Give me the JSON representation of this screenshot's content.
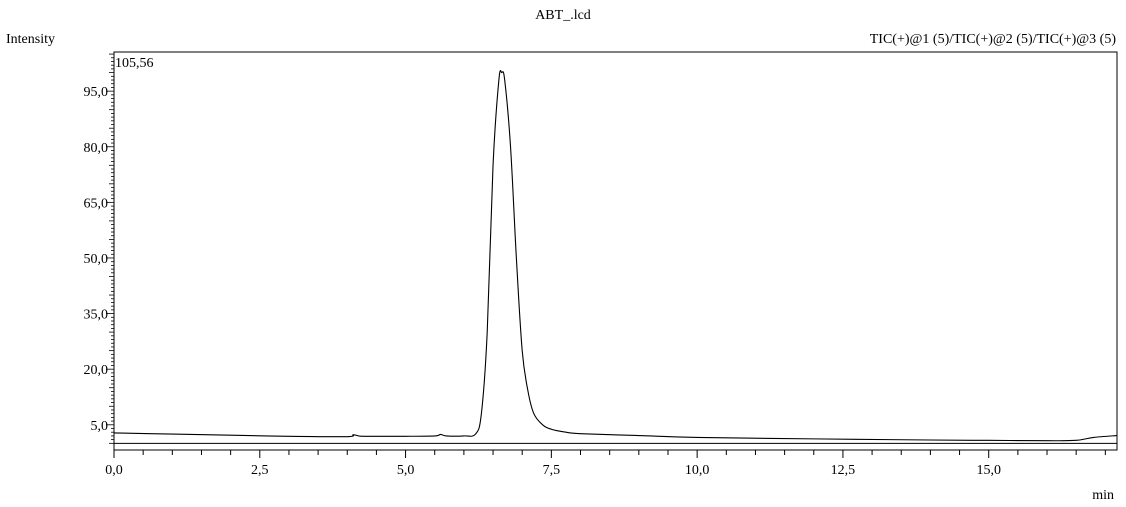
{
  "chart_data": {
    "type": "line",
    "title": "ABT_.lcd",
    "ylabel": "Intensity",
    "xlabel": "min",
    "legend": "TIC(+)@1 (5)/TIC(+)@2 (5)/TIC(+)@3 (5)",
    "max_label": "105,56",
    "xlim": [
      0,
      17.2
    ],
    "ylim": [
      -1.8,
      105.56
    ],
    "x_ticks": [
      "0,0",
      "2,5",
      "5,0",
      "7,5",
      "10,0",
      "12,5",
      "15,0"
    ],
    "x_tick_values": [
      0,
      2.5,
      5,
      7.5,
      10,
      12.5,
      15
    ],
    "y_ticks": [
      "5,0",
      "20,0",
      "35,0",
      "50,0",
      "65,0",
      "80,0",
      "95,0"
    ],
    "y_tick_values": [
      5,
      20,
      35,
      50,
      65,
      80,
      95
    ],
    "baseline_y": 0,
    "series": [
      {
        "name": "TIC",
        "x": [
          0,
          1,
          2,
          3,
          4,
          4.1,
          4.2,
          4.3,
          5,
          5.5,
          5.6,
          5.7,
          6.0,
          6.2,
          6.3,
          6.4,
          6.5,
          6.6,
          6.65,
          6.7,
          6.8,
          6.9,
          7.0,
          7.1,
          7.2,
          7.35,
          7.5,
          7.75,
          8.0,
          9.0,
          10.0,
          12.0,
          14.0,
          15.0,
          16.0,
          16.5,
          16.8,
          17.2
        ],
        "y": [
          2.8,
          2.5,
          2.2,
          1.9,
          1.8,
          2.3,
          2.0,
          1.9,
          1.9,
          2.0,
          2.4,
          2.0,
          2.0,
          2.5,
          8,
          30,
          75,
          98,
          100,
          98,
          80,
          50,
          25,
          14,
          8,
          5,
          3.8,
          3.0,
          2.6,
          2.1,
          1.6,
          1.2,
          0.9,
          0.8,
          0.7,
          0.8,
          1.6,
          2.1
        ]
      }
    ]
  }
}
